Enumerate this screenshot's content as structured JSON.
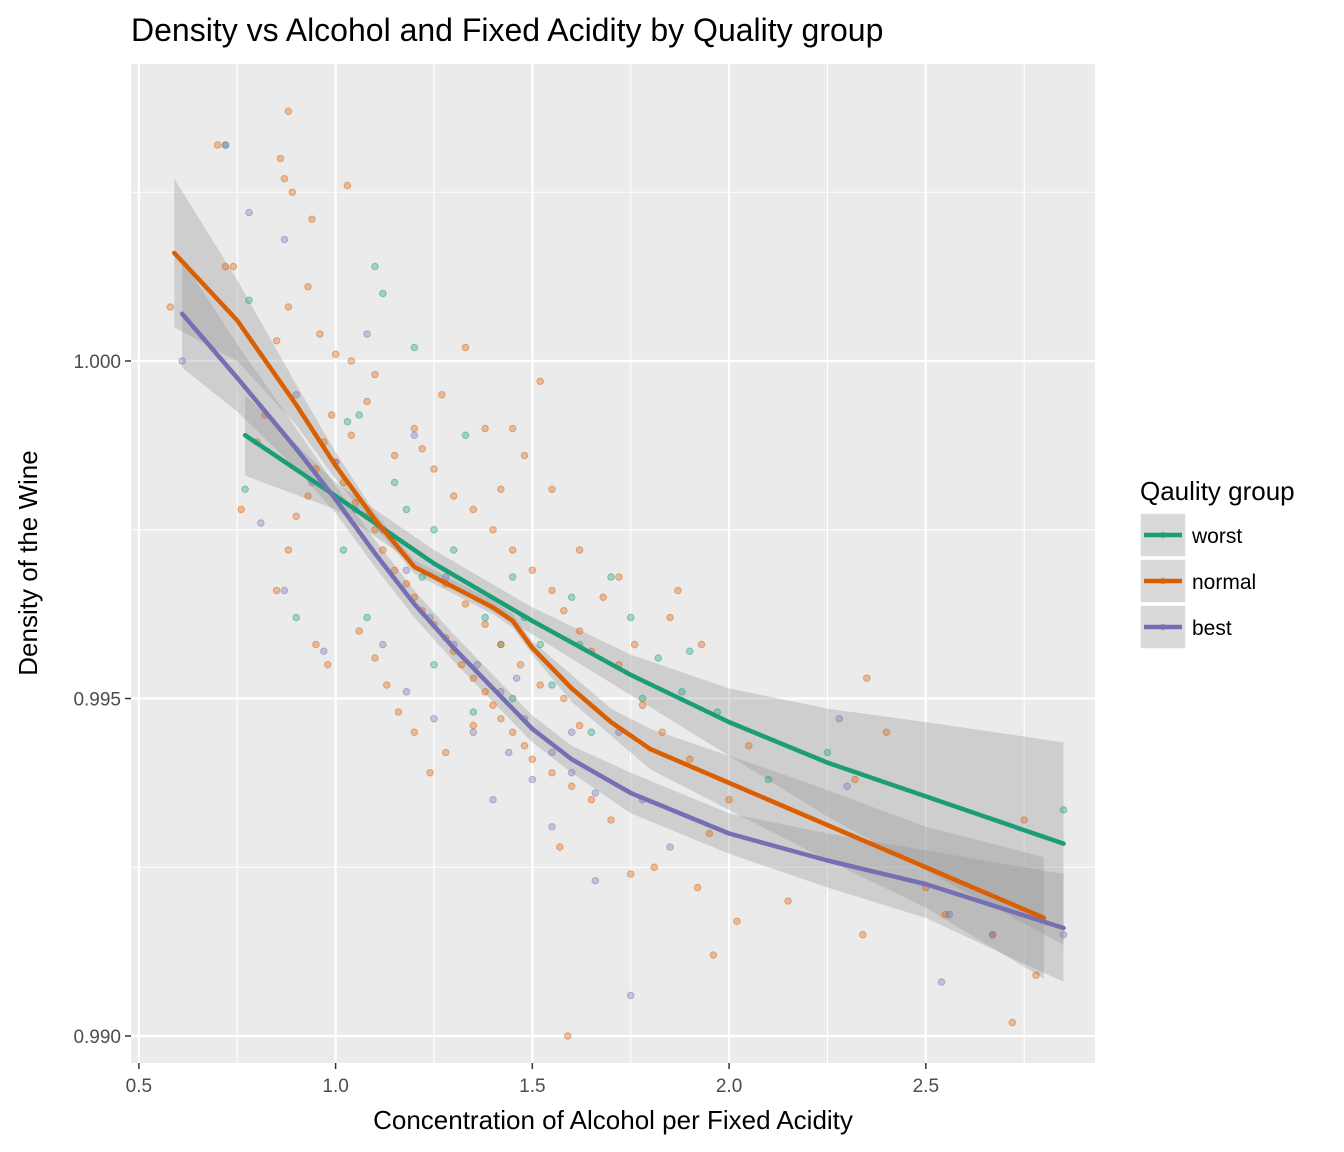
{
  "chart_data": {
    "type": "scatter",
    "title": "Density vs Alcohol and Fixed Acidity by Quality group",
    "xlabel": "Concentration of Alcohol per Fixed Acidity",
    "ylabel": "Density of the Wine",
    "xlim": [
      0.48,
      2.93
    ],
    "ylim": [
      0.9896,
      1.0044
    ],
    "x_ticks": [
      0.5,
      1.0,
      1.5,
      2.0,
      2.5
    ],
    "x_tick_labels": [
      "0.5",
      "1.0",
      "1.5",
      "2.0",
      "2.5"
    ],
    "y_ticks": [
      0.99,
      0.995,
      1.0
    ],
    "y_tick_labels": [
      "0.990",
      "0.995",
      "1.000"
    ],
    "grid": true,
    "legend": {
      "title": "Qaulity group",
      "position": "right"
    },
    "series": [
      {
        "name": "worst",
        "color": "#1b9e77",
        "smooth": {
          "x": [
            0.77,
            1.0,
            1.25,
            1.5,
            1.75,
            2.0,
            2.25,
            2.5,
            2.85
          ],
          "y": [
            0.9989,
            0.998,
            0.997,
            0.99615,
            0.99535,
            0.99465,
            0.99405,
            0.99355,
            0.99285
          ],
          "band": [
            0.0006,
            0.0002,
            0.0002,
            0.0002,
            0.0003,
            0.0005,
            0.0008,
            0.0011,
            0.0015
          ]
        },
        "points": [
          [
            0.72,
            1.0032
          ],
          [
            0.78,
            1.0009
          ],
          [
            0.77,
            0.9981
          ],
          [
            0.9,
            0.9962
          ],
          [
            1.02,
            0.9972
          ],
          [
            1.03,
            0.9991
          ],
          [
            1.06,
            0.9992
          ],
          [
            1.08,
            0.9962
          ],
          [
            1.1,
            1.0014
          ],
          [
            1.12,
            1.001
          ],
          [
            1.2,
            1.0002
          ],
          [
            1.15,
            0.9982
          ],
          [
            1.18,
            0.9978
          ],
          [
            1.22,
            0.9968
          ],
          [
            1.25,
            0.9975
          ],
          [
            1.3,
            0.9972
          ],
          [
            1.33,
            0.9989
          ],
          [
            1.38,
            0.9962
          ],
          [
            1.42,
            0.9958
          ],
          [
            1.45,
            0.9968
          ],
          [
            1.48,
            0.9962
          ],
          [
            1.52,
            0.9958
          ],
          [
            1.55,
            0.9952
          ],
          [
            1.6,
            0.9965
          ],
          [
            1.62,
            0.9958
          ],
          [
            1.7,
            0.9968
          ],
          [
            1.75,
            0.9962
          ],
          [
            1.78,
            0.995
          ],
          [
            1.82,
            0.9956
          ],
          [
            1.88,
            0.9951
          ],
          [
            1.9,
            0.9957
          ],
          [
            1.97,
            0.9948
          ],
          [
            2.1,
            0.9938
          ],
          [
            2.25,
            0.9942
          ],
          [
            2.85,
            0.99335
          ],
          [
            1.35,
            0.9948
          ],
          [
            1.25,
            0.9955
          ],
          [
            1.45,
            0.995
          ],
          [
            1.65,
            0.9945
          ]
        ]
      },
      {
        "name": "normal",
        "color": "#d95f02",
        "smooth": {
          "x": [
            0.59,
            0.75,
            0.9,
            1.0,
            1.1,
            1.2,
            1.25,
            1.3,
            1.4,
            1.45,
            1.5,
            1.6,
            1.7,
            1.8,
            2.0,
            2.2,
            2.5,
            2.8
          ],
          "y": [
            1.0016,
            1.0006,
            0.99935,
            0.99845,
            0.99765,
            0.99695,
            0.9968,
            0.99665,
            0.99635,
            0.99615,
            0.99575,
            0.99515,
            0.99465,
            0.99425,
            0.99375,
            0.99325,
            0.9925,
            0.99175
          ],
          "band": [
            0.0011,
            0.0006,
            0.0003,
            0.0002,
            0.0001,
            0.0001,
            0.0001,
            0.0001,
            0.0001,
            0.0001,
            0.0001,
            0.0002,
            0.0002,
            0.0003,
            0.0004,
            0.0005,
            0.0006,
            0.0009
          ]
        },
        "points": [
          [
            0.7,
            1.0032
          ],
          [
            0.88,
            1.0037
          ],
          [
            0.86,
            1.003
          ],
          [
            0.87,
            1.0027
          ],
          [
            0.89,
            1.0025
          ],
          [
            1.03,
            1.0026
          ],
          [
            0.94,
            1.0021
          ],
          [
            0.72,
            1.0014
          ],
          [
            0.74,
            1.0014
          ],
          [
            0.58,
            1.0008
          ],
          [
            0.93,
            1.0011
          ],
          [
            0.88,
            1.0008
          ],
          [
            0.85,
            1.0003
          ],
          [
            0.96,
            1.0004
          ],
          [
            1.0,
            1.0001
          ],
          [
            1.04,
            1.0
          ],
          [
            1.1,
            0.9998
          ],
          [
            1.33,
            1.0002
          ],
          [
            1.52,
            0.9997
          ],
          [
            1.55,
            0.9981
          ],
          [
            1.0,
            0.9985
          ],
          [
            1.02,
            0.9982
          ],
          [
            1.05,
            0.9979
          ],
          [
            1.08,
            0.9977
          ],
          [
            1.1,
            0.9975
          ],
          [
            1.12,
            0.9972
          ],
          [
            1.15,
            0.9969
          ],
          [
            1.18,
            0.9967
          ],
          [
            1.2,
            0.9965
          ],
          [
            1.22,
            0.9963
          ],
          [
            1.25,
            0.9961
          ],
          [
            1.28,
            0.9959
          ],
          [
            1.3,
            0.9957
          ],
          [
            1.32,
            0.9955
          ],
          [
            1.35,
            0.9953
          ],
          [
            1.38,
            0.9951
          ],
          [
            1.4,
            0.9949
          ],
          [
            1.42,
            0.9947
          ],
          [
            1.45,
            0.9945
          ],
          [
            1.48,
            0.9943
          ],
          [
            1.5,
            0.9941
          ],
          [
            1.55,
            0.9939
          ],
          [
            1.6,
            0.9937
          ],
          [
            1.65,
            0.9935
          ],
          [
            1.7,
            0.9932
          ],
          [
            1.25,
            0.9984
          ],
          [
            1.3,
            0.998
          ],
          [
            1.35,
            0.9978
          ],
          [
            1.4,
            0.9975
          ],
          [
            1.45,
            0.9972
          ],
          [
            1.5,
            0.9969
          ],
          [
            1.55,
            0.9966
          ],
          [
            1.58,
            0.9963
          ],
          [
            1.62,
            0.996
          ],
          [
            1.65,
            0.9957
          ],
          [
            1.2,
            0.999
          ],
          [
            1.15,
            0.9986
          ],
          [
            1.28,
            0.9967
          ],
          [
            1.33,
            0.9964
          ],
          [
            1.38,
            0.9961
          ],
          [
            1.42,
            0.9958
          ],
          [
            1.47,
            0.9955
          ],
          [
            1.52,
            0.9952
          ],
          [
            1.58,
            0.995
          ],
          [
            1.62,
            0.9946
          ],
          [
            1.72,
            0.9955
          ],
          [
            1.78,
            0.9949
          ],
          [
            1.83,
            0.9945
          ],
          [
            1.9,
            0.9941
          ],
          [
            1.95,
            0.993
          ],
          [
            2.0,
            0.9935
          ],
          [
            2.05,
            0.9943
          ],
          [
            1.75,
            0.9924
          ],
          [
            1.81,
            0.9925
          ],
          [
            1.92,
            0.9922
          ],
          [
            2.02,
            0.9917
          ],
          [
            2.15,
            0.992
          ],
          [
            1.96,
            0.9912
          ],
          [
            2.35,
            0.9953
          ],
          [
            2.4,
            0.9945
          ],
          [
            2.32,
            0.9938
          ],
          [
            2.34,
            0.9915
          ],
          [
            2.5,
            0.9922
          ],
          [
            2.55,
            0.9918
          ],
          [
            2.67,
            0.9915
          ],
          [
            2.72,
            0.9902
          ],
          [
            2.78,
            0.9909
          ],
          [
            2.75,
            0.9932
          ],
          [
            1.59,
            0.99
          ],
          [
            1.57,
            0.9928
          ],
          [
            0.95,
            0.9958
          ],
          [
            0.98,
            0.9955
          ],
          [
            1.06,
            0.996
          ],
          [
            1.1,
            0.9956
          ],
          [
            1.13,
            0.9952
          ],
          [
            1.16,
            0.9948
          ],
          [
            1.2,
            0.9945
          ],
          [
            1.24,
            0.9939
          ],
          [
            1.28,
            0.9942
          ],
          [
            1.35,
            0.9946
          ],
          [
            0.85,
            0.9966
          ],
          [
            0.88,
            0.9972
          ],
          [
            0.9,
            0.9977
          ],
          [
            0.93,
            0.998
          ],
          [
            0.95,
            0.9984
          ],
          [
            0.97,
            0.9988
          ],
          [
            0.99,
            0.9992
          ],
          [
            0.8,
            0.9988
          ],
          [
            0.82,
            0.9992
          ],
          [
            0.76,
            0.9978
          ],
          [
            1.62,
            0.9972
          ],
          [
            1.68,
            0.9965
          ],
          [
            1.72,
            0.9968
          ],
          [
            1.76,
            0.9958
          ],
          [
            1.85,
            0.9962
          ],
          [
            1.87,
            0.9966
          ],
          [
            1.93,
            0.9958
          ],
          [
            1.45,
            0.999
          ],
          [
            1.48,
            0.9986
          ],
          [
            1.42,
            0.9981
          ],
          [
            1.38,
            0.999
          ],
          [
            1.27,
            0.9995
          ],
          [
            1.22,
            0.9987
          ],
          [
            1.08,
            0.9994
          ],
          [
            1.04,
            0.9989
          ]
        ]
      },
      {
        "name": "best",
        "color": "#7570b3",
        "smooth": {
          "x": [
            0.61,
            0.75,
            0.9,
            1.0,
            1.1,
            1.2,
            1.3,
            1.4,
            1.5,
            1.6,
            1.75,
            2.0,
            2.25,
            2.5,
            2.85
          ],
          "y": [
            1.0007,
            0.99975,
            0.9987,
            0.99795,
            0.99715,
            0.9964,
            0.99575,
            0.99515,
            0.99455,
            0.9941,
            0.9936,
            0.993,
            0.9926,
            0.99225,
            0.9916
          ],
          "band": [
            0.0008,
            0.0005,
            0.0003,
            0.0002,
            0.0002,
            0.0002,
            0.0002,
            0.0002,
            0.0002,
            0.0002,
            0.0003,
            0.0003,
            0.0004,
            0.0005,
            0.0008
          ]
        },
        "points": [
          [
            0.72,
            1.0032
          ],
          [
            0.78,
            1.0022
          ],
          [
            0.61,
            1.0
          ],
          [
            0.87,
            1.0018
          ],
          [
            1.08,
            1.0004
          ],
          [
            0.9,
            0.9995
          ],
          [
            0.94,
            0.9982
          ],
          [
            0.81,
            0.9976
          ],
          [
            0.87,
            0.9966
          ],
          [
            0.97,
            0.9957
          ],
          [
            1.0,
            0.9985
          ],
          [
            1.05,
            0.9978
          ],
          [
            1.12,
            0.9975
          ],
          [
            1.18,
            0.9969
          ],
          [
            1.24,
            0.9962
          ],
          [
            1.3,
            0.9958
          ],
          [
            1.36,
            0.9955
          ],
          [
            1.42,
            0.9951
          ],
          [
            1.48,
            0.9947
          ],
          [
            1.55,
            0.9942
          ],
          [
            1.6,
            0.9939
          ],
          [
            1.66,
            0.9936
          ],
          [
            1.2,
            0.9989
          ],
          [
            1.28,
            0.9968
          ],
          [
            1.35,
            0.9945
          ],
          [
            1.44,
            0.9942
          ],
          [
            1.5,
            0.9938
          ],
          [
            1.55,
            0.9931
          ],
          [
            1.6,
            0.9945
          ],
          [
            1.72,
            0.9945
          ],
          [
            1.78,
            0.9935
          ],
          [
            1.85,
            0.9928
          ],
          [
            1.66,
            0.9923
          ],
          [
            1.75,
            0.9906
          ],
          [
            2.28,
            0.9947
          ],
          [
            2.3,
            0.9937
          ],
          [
            2.54,
            0.9908
          ],
          [
            2.56,
            0.9918
          ],
          [
            2.67,
            0.9915
          ],
          [
            2.85,
            0.9915
          ],
          [
            1.12,
            0.9958
          ],
          [
            1.18,
            0.9951
          ],
          [
            1.25,
            0.9947
          ],
          [
            1.4,
            0.9935
          ],
          [
            1.46,
            0.9953
          ]
        ]
      }
    ]
  }
}
